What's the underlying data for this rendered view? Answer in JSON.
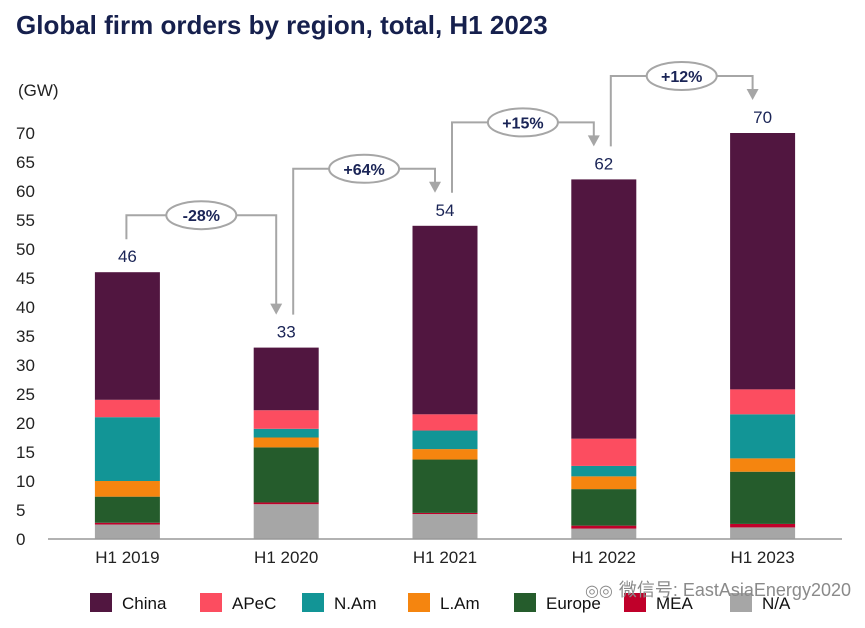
{
  "chart_data": {
    "type": "bar",
    "stacked": true,
    "title": "Global firm orders by region, total, H1 2023",
    "ylabel": "(GW)",
    "ylim": [
      0,
      70
    ],
    "yticks": [
      0,
      5,
      10,
      15,
      20,
      25,
      30,
      35,
      40,
      45,
      50,
      55,
      60,
      65,
      70
    ],
    "categories": [
      "H1 2019",
      "H1 2020",
      "H1 2021",
      "H1 2022",
      "H1 2023"
    ],
    "totals": [
      46,
      33,
      54,
      62,
      70
    ],
    "changes": [
      "-28%",
      "+64%",
      "+15%",
      "+12%"
    ],
    "series": [
      {
        "name": "N/A",
        "color": "#a6a6a6",
        "values": [
          2.5,
          6,
          4.3,
          1.8,
          2
        ]
      },
      {
        "name": "MEA",
        "color": "#c0002a",
        "values": [
          0.3,
          0.3,
          0.2,
          0.5,
          0.6
        ]
      },
      {
        "name": "Europe",
        "color": "#255c2c",
        "values": [
          4.5,
          9.5,
          9.2,
          6.3,
          9
        ]
      },
      {
        "name": "L.Am",
        "color": "#f5850f",
        "values": [
          2.7,
          1.7,
          1.8,
          2.2,
          2.3
        ]
      },
      {
        "name": "N.Am",
        "color": "#129596",
        "values": [
          11,
          1.5,
          3.2,
          1.8,
          7.6
        ]
      },
      {
        "name": "APeC",
        "color": "#fc4d60",
        "values": [
          3,
          3.2,
          2.8,
          4.7,
          4.3
        ]
      },
      {
        "name": "China",
        "color": "#511640",
        "values": [
          22,
          10.8,
          32.5,
          44.7,
          44.2
        ]
      }
    ],
    "legend": [
      "China",
      "APeC",
      "N.Am",
      "L.Am",
      "Europe",
      "MEA",
      "N/A"
    ],
    "legend_position": "bottom",
    "grid": false
  },
  "watermark": "微信号: EastAsiaEnergy2020",
  "watermark_icon": "wechat-icon"
}
